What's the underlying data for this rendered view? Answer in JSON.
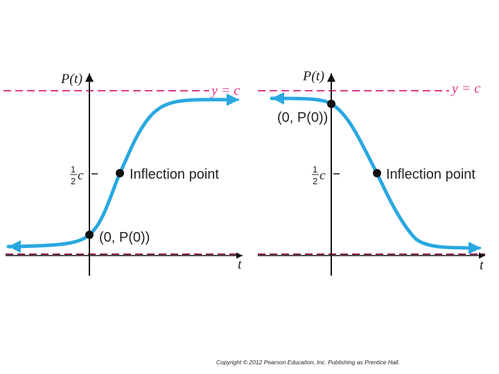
{
  "colors": {
    "curve": "#29a8e0",
    "asymptote_top": "#e0368a",
    "asymptote_bottom": "#8a1a4a",
    "axis": "#111111",
    "text": "#222222"
  },
  "left_graph": {
    "y_axis_label": "P(t)",
    "x_axis_label": "t",
    "asymptote_label": "y = c",
    "half_c_label": "½c",
    "initial_point_label": "(0, P(0))",
    "inflection_label": "Inflection point",
    "shape": "increasing-logistic"
  },
  "right_graph": {
    "y_axis_label": "P(t)",
    "x_axis_label": "t",
    "asymptote_label": "y = c",
    "half_c_label": "½c",
    "initial_point_label": "(0, P(0))",
    "inflection_label": "Inflection point",
    "shape": "decreasing-logistic"
  },
  "footer": {
    "copyright": "Copyright © 2012 Pearson Education, Inc. Publishing as Prentice Hall."
  }
}
